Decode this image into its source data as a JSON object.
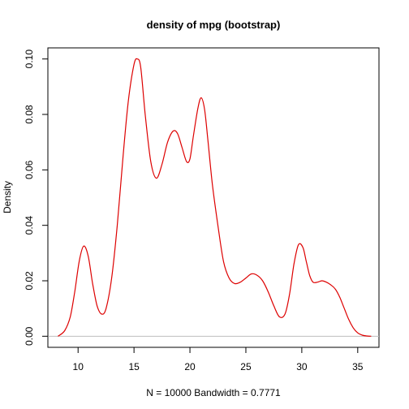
{
  "chart_data": {
    "type": "line",
    "title": "density of mpg (bootstrap)",
    "xlabel": "N = 10000   Bandwidth = 0.7771",
    "ylabel": "Density",
    "xlim": [
      7.3,
      36.9
    ],
    "ylim": [
      -0.004,
      0.104
    ],
    "x_ticks": [
      10,
      15,
      20,
      25,
      30,
      35
    ],
    "x_tick_labels": [
      "10",
      "15",
      "20",
      "25",
      "30",
      "35"
    ],
    "y_ticks": [
      0.0,
      0.02,
      0.04,
      0.06,
      0.08,
      0.1
    ],
    "y_tick_labels": [
      "0.00",
      "0.02",
      "0.04",
      "0.06",
      "0.08",
      "0.10"
    ],
    "grid": false,
    "baseline": 0,
    "series": [
      {
        "color": "#dd0000",
        "x": [
          8.2,
          8.8,
          9.3,
          9.7,
          10.1,
          10.5,
          10.9,
          11.3,
          11.7,
          12.1,
          12.5,
          13.0,
          13.5,
          14.0,
          14.5,
          15.0,
          15.3,
          15.6,
          16.0,
          16.5,
          17.0,
          17.5,
          18.0,
          18.5,
          18.9,
          19.3,
          19.7,
          20.0,
          20.3,
          20.7,
          21.0,
          21.3,
          21.6,
          22.0,
          22.5,
          23.0,
          23.5,
          24.0,
          24.5,
          25.0,
          25.5,
          26.0,
          26.5,
          27.0,
          27.5,
          28.0,
          28.5,
          28.9,
          29.3,
          29.7,
          30.1,
          30.4,
          30.7,
          31.0,
          31.4,
          31.8,
          32.2,
          32.6,
          33.0,
          33.4,
          33.8,
          34.2,
          34.6,
          35.0,
          35.4,
          35.8,
          36.2
        ],
        "y": [
          0.0,
          0.002,
          0.007,
          0.016,
          0.027,
          0.0325,
          0.029,
          0.019,
          0.011,
          0.008,
          0.01,
          0.021,
          0.04,
          0.064,
          0.085,
          0.098,
          0.1,
          0.097,
          0.08,
          0.063,
          0.057,
          0.062,
          0.07,
          0.074,
          0.073,
          0.068,
          0.063,
          0.064,
          0.072,
          0.082,
          0.086,
          0.082,
          0.071,
          0.055,
          0.04,
          0.027,
          0.021,
          0.019,
          0.0195,
          0.021,
          0.0225,
          0.022,
          0.02,
          0.016,
          0.011,
          0.007,
          0.008,
          0.015,
          0.026,
          0.033,
          0.032,
          0.027,
          0.022,
          0.0195,
          0.0195,
          0.02,
          0.0195,
          0.0185,
          0.017,
          0.014,
          0.01,
          0.006,
          0.003,
          0.0012,
          0.0004,
          0.0001,
          0.0
        ]
      }
    ]
  }
}
